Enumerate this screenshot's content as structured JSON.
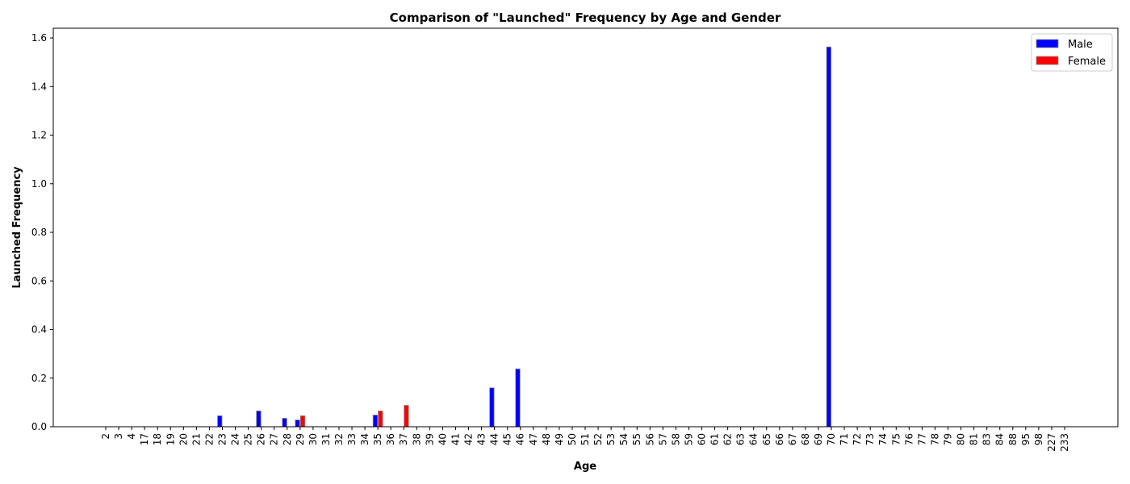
{
  "chart_data": {
    "type": "bar",
    "title": "Comparison of \"Launched\" Frequency by Age and Gender",
    "xlabel": "Age",
    "ylabel": "Launched Frequency",
    "ylim": [
      0,
      1.64
    ],
    "yticks": [
      "0.0",
      "0.2",
      "0.4",
      "0.6",
      "0.8",
      "1.0",
      "1.2",
      "1.4",
      "1.6"
    ],
    "legend_position": "top-right",
    "categories": [
      "2",
      "3",
      "4",
      "17",
      "18",
      "19",
      "20",
      "21",
      "22",
      "23",
      "24",
      "25",
      "26",
      "27",
      "28",
      "29",
      "30",
      "31",
      "32",
      "33",
      "34",
      "35",
      "36",
      "37",
      "38",
      "39",
      "40",
      "41",
      "42",
      "43",
      "44",
      "45",
      "46",
      "47",
      "48",
      "49",
      "50",
      "51",
      "52",
      "53",
      "54",
      "55",
      "56",
      "57",
      "58",
      "59",
      "60",
      "61",
      "62",
      "63",
      "64",
      "65",
      "66",
      "67",
      "68",
      "69",
      "70",
      "71",
      "72",
      "73",
      "74",
      "75",
      "76",
      "77",
      "78",
      "79",
      "80",
      "81",
      "83",
      "84",
      "88",
      "95",
      "98",
      "227",
      "233"
    ],
    "series": [
      {
        "name": "Male",
        "color": "#0000ff",
        "values": [
          0,
          0,
          0,
          0,
          0,
          0,
          0,
          0,
          0,
          0.045,
          0,
          0,
          0.065,
          0,
          0.035,
          0.028,
          0,
          0,
          0,
          0,
          0,
          0.048,
          0,
          0,
          0,
          0,
          0,
          0,
          0,
          0,
          0.16,
          0,
          0.238,
          0,
          0,
          0,
          0,
          0,
          0,
          0,
          0,
          0,
          0,
          0,
          0,
          0,
          0,
          0,
          0,
          0,
          0,
          0,
          0,
          0,
          0,
          0,
          1.563,
          0,
          0,
          0,
          0,
          0,
          0,
          0,
          0,
          0,
          0,
          0,
          0,
          0,
          0,
          0,
          0,
          0,
          0
        ]
      },
      {
        "name": "Female",
        "color": "#ff0000",
        "values": [
          0,
          0,
          0,
          0,
          0,
          0,
          0,
          0,
          0,
          0,
          0,
          0,
          0,
          0,
          0,
          0.045,
          0,
          0,
          0,
          0,
          0,
          0.065,
          0,
          0.088,
          0,
          0,
          0,
          0,
          0,
          0,
          0,
          0,
          0,
          0,
          0,
          0,
          0,
          0,
          0,
          0,
          0,
          0,
          0,
          0,
          0,
          0,
          0,
          0,
          0,
          0,
          0,
          0,
          0,
          0,
          0,
          0,
          0,
          0,
          0,
          0,
          0,
          0,
          0,
          0,
          0,
          0,
          0,
          0,
          0,
          0,
          0,
          0,
          0,
          0,
          0
        ]
      }
    ]
  }
}
